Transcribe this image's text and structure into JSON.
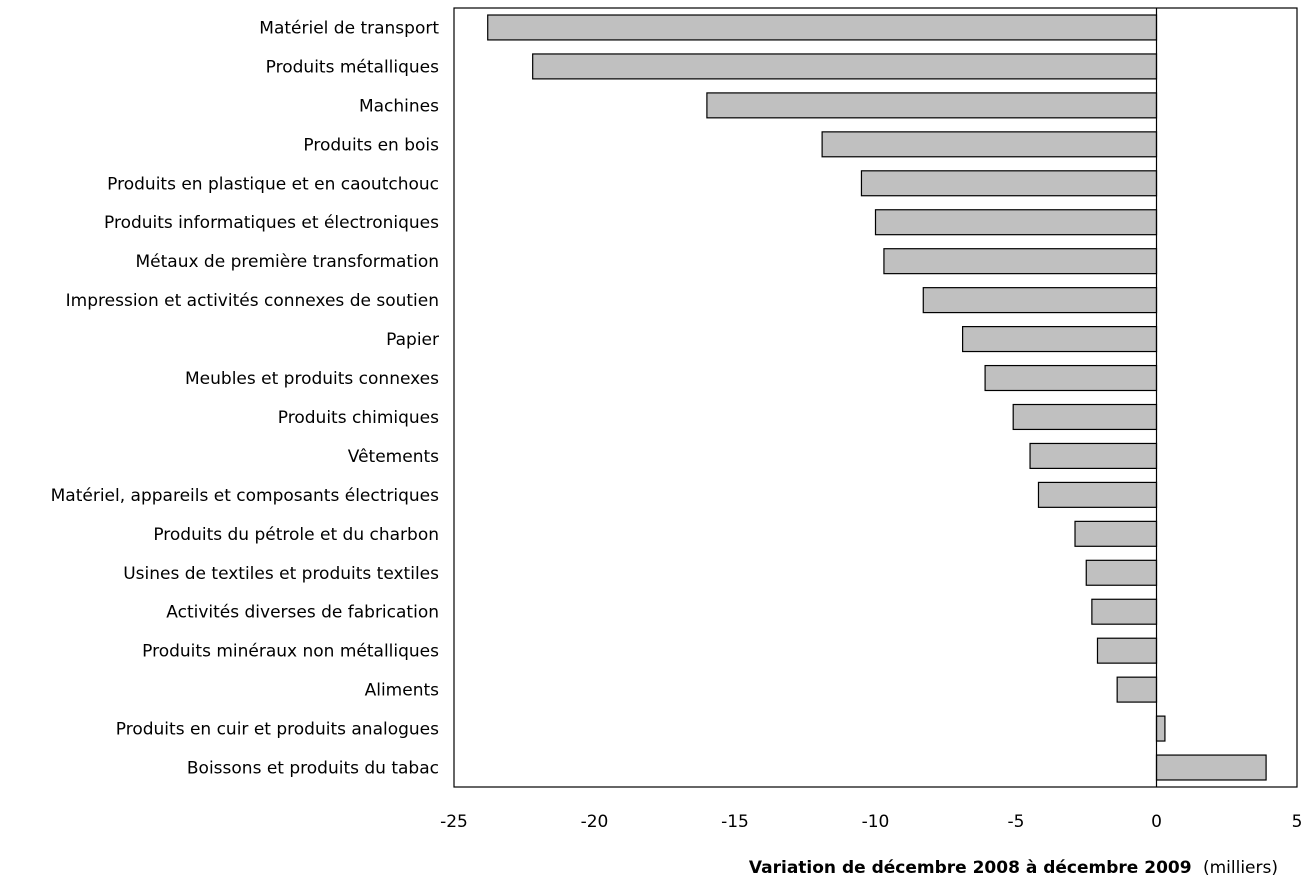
{
  "chart_data": {
    "type": "bar",
    "orientation": "horizontal",
    "categories": [
      "Matériel de transport",
      "Produits métalliques",
      "Machines",
      "Produits en bois",
      "Produits en plastique et en caoutchouc",
      "Produits informatiques et électroniques",
      "Métaux de première transformation",
      "Impression et activités connexes de soutien",
      "Papier",
      "Meubles et produits connexes",
      "Produits chimiques",
      "Vêtements",
      "Matériel, appareils et composants électriques",
      "Produits du pétrole et du charbon",
      "Usines de textiles et produits textiles",
      "Activités diverses de fabrication",
      "Produits minéraux non métalliques",
      "Aliments",
      "Produits en cuir et produits analogues",
      "Boissons et produits du tabac"
    ],
    "values": [
      -23.8,
      -22.2,
      -16.0,
      -11.9,
      -10.5,
      -10.0,
      -9.7,
      -8.3,
      -6.9,
      -6.1,
      -5.1,
      -4.5,
      -4.2,
      -2.9,
      -2.5,
      -2.3,
      -2.1,
      -1.4,
      0.3,
      3.9
    ],
    "xlim": [
      -25,
      5
    ],
    "xticks": [
      -25,
      -20,
      -15,
      -10,
      -5,
      0,
      5
    ],
    "xlabel_bold": "Variation de décembre 2008 à décembre 2009",
    "xlabel_unit": "(milliers)",
    "bar_color": "#c0c0c0",
    "bar_edge_color": "#000000",
    "grid": false
  }
}
